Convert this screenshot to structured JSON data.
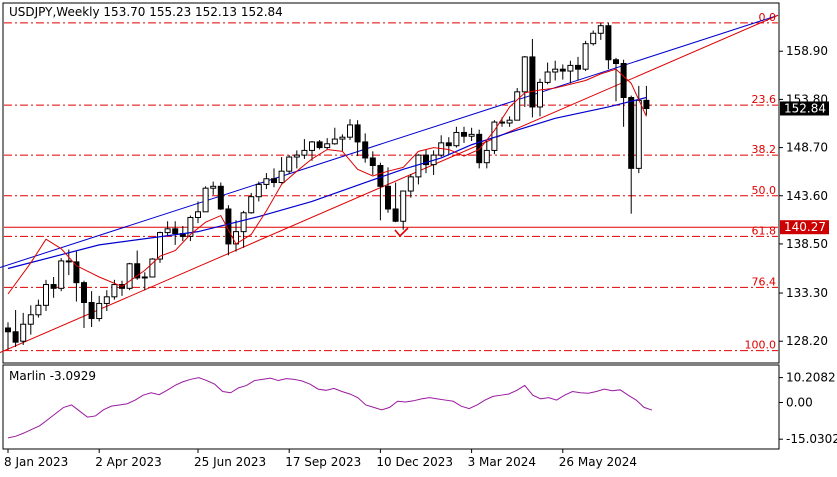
{
  "chart_data": [
    {
      "type": "candlestick",
      "title": "USDJPY,Weekly  153.70 155.23 152.13 152.84",
      "timeframe": "Weekly",
      "symbol": "USDJPY",
      "ohlc_last": {
        "open": 153.7,
        "high": 155.23,
        "low": 152.13,
        "close": 152.84
      },
      "ylim": [
        126.0,
        163.9
      ],
      "y_ticks": [
        "158.90",
        "153.80",
        "148.70",
        "143.60",
        "138.50",
        "133.30",
        "128.20"
      ],
      "x_ticks": [
        "8 Jan 2023",
        "2 Apr 2023",
        "25 Jun 2023",
        "17 Sep 2023",
        "10 Dec 2023",
        "3 Mar 2024",
        "26 May 2024"
      ],
      "current_price_label": "152.84",
      "marked_level_label": "140.27",
      "fibonacci_levels": [
        {
          "label": "0.0",
          "value": 161.9
        },
        {
          "label": "23.6",
          "value": 153.2
        },
        {
          "label": "38.2",
          "value": 147.9
        },
        {
          "label": "50.0",
          "value": 143.6
        },
        {
          "label": "61.8",
          "value": 139.3
        },
        {
          "label": "76.4",
          "value": 133.9
        },
        {
          "label": "100.0",
          "value": 127.2
        }
      ],
      "candles": [
        [
          129.6,
          130.2,
          127.3,
          129.2
        ],
        [
          129.2,
          131.5,
          127.6,
          128.1
        ],
        [
          128.2,
          131.2,
          127.8,
          130.0
        ],
        [
          130.0,
          132.0,
          128.9,
          131.0
        ],
        [
          131.0,
          132.6,
          130.7,
          132.0
        ],
        [
          132.0,
          134.7,
          131.4,
          134.2
        ],
        [
          134.2,
          135.0,
          132.8,
          133.8
        ],
        [
          133.8,
          137.0,
          133.5,
          136.7
        ],
        [
          136.7,
          137.9,
          135.2,
          136.6
        ],
        [
          136.6,
          137.7,
          132.4,
          134.4
        ],
        [
          134.4,
          134.6,
          129.6,
          132.3
        ],
        [
          132.3,
          133.5,
          129.7,
          130.6
        ],
        [
          130.6,
          133.0,
          130.3,
          132.2
        ],
        [
          132.2,
          133.6,
          131.4,
          132.9
        ],
        [
          132.9,
          134.7,
          132.6,
          134.2
        ],
        [
          134.2,
          134.6,
          133.0,
          133.8
        ],
        [
          133.8,
          136.5,
          133.6,
          136.4
        ],
        [
          136.4,
          137.8,
          134.7,
          134.9
        ],
        [
          134.9,
          135.5,
          133.6,
          135.0
        ],
        [
          135.0,
          137.0,
          135.0,
          136.9
        ],
        [
          136.9,
          139.8,
          136.5,
          139.7
        ],
        [
          139.7,
          140.9,
          139.4,
          140.1
        ],
        [
          140.1,
          140.9,
          138.4,
          139.6
        ],
        [
          139.6,
          140.4,
          138.8,
          139.3
        ],
        [
          139.3,
          141.5,
          138.8,
          141.3
        ],
        [
          141.3,
          143.0,
          140.7,
          141.9
        ],
        [
          141.9,
          144.6,
          141.9,
          144.4
        ],
        [
          144.4,
          145.1,
          143.7,
          144.6
        ],
        [
          144.6,
          145.0,
          142.1,
          142.2
        ],
        [
          142.2,
          142.6,
          137.3,
          138.5
        ],
        [
          138.5,
          141.0,
          137.7,
          139.8
        ],
        [
          139.8,
          142.0,
          138.1,
          141.8
        ],
        [
          141.8,
          143.9,
          141.7,
          143.5
        ],
        [
          143.5,
          145.1,
          143.0,
          144.8
        ],
        [
          144.8,
          146.0,
          144.3,
          145.4
        ],
        [
          145.4,
          146.5,
          144.5,
          145.0
        ],
        [
          145.0,
          147.7,
          144.9,
          146.2
        ],
        [
          146.2,
          147.9,
          145.9,
          147.7
        ],
        [
          147.7,
          148.4,
          146.5,
          147.9
        ],
        [
          147.9,
          149.6,
          147.5,
          148.4
        ],
        [
          148.4,
          149.4,
          147.3,
          149.3
        ],
        [
          149.3,
          149.5,
          148.5,
          148.7
        ],
        [
          148.7,
          149.7,
          148.5,
          149.1
        ],
        [
          149.1,
          150.8,
          149.0,
          149.6
        ],
        [
          149.6,
          150.1,
          148.3,
          149.8
        ],
        [
          149.8,
          151.7,
          149.5,
          151.1
        ],
        [
          151.1,
          151.6,
          147.8,
          149.3
        ],
        [
          149.3,
          150.2,
          147.1,
          147.6
        ],
        [
          147.6,
          148.3,
          145.8,
          146.8
        ],
        [
          146.8,
          147.1,
          141.0,
          144.6
        ],
        [
          144.6,
          146.6,
          141.8,
          142.2
        ],
        [
          142.2,
          145.0,
          140.8,
          140.9
        ],
        [
          140.9,
          144.0,
          140.0,
          144.1
        ],
        [
          144.1,
          145.9,
          143.4,
          145.6
        ],
        [
          145.6,
          148.0,
          144.8,
          147.9
        ],
        [
          147.9,
          148.5,
          146.0,
          146.9
        ],
        [
          146.9,
          148.4,
          145.8,
          147.9
        ],
        [
          147.9,
          150.0,
          147.7,
          149.2
        ],
        [
          149.2,
          149.8,
          148.0,
          148.9
        ],
        [
          148.9,
          150.9,
          148.7,
          150.3
        ],
        [
          150.3,
          150.9,
          149.2,
          149.9
        ],
        [
          149.9,
          150.8,
          149.4,
          150.1
        ],
        [
          150.1,
          150.6,
          146.5,
          147.1
        ],
        [
          147.1,
          149.4,
          146.5,
          148.4
        ],
        [
          148.4,
          151.6,
          148.0,
          151.4
        ],
        [
          151.4,
          151.9,
          150.9,
          151.3
        ],
        [
          151.3,
          152.0,
          150.9,
          151.6
        ],
        [
          151.6,
          155.0,
          151.6,
          154.6
        ],
        [
          154.6,
          158.4,
          153.0,
          158.3
        ],
        [
          158.3,
          160.2,
          151.9,
          153.0
        ],
        [
          153.0,
          156.0,
          152.0,
          155.6
        ],
        [
          155.6,
          157.7,
          155.4,
          156.7
        ],
        [
          156.7,
          157.9,
          155.8,
          157.0
        ],
        [
          157.0,
          157.5,
          155.9,
          156.8
        ],
        [
          156.8,
          157.9,
          155.5,
          157.4
        ],
        [
          157.4,
          158.3,
          155.8,
          157.0
        ],
        [
          157.0,
          160.0,
          156.8,
          159.7
        ],
        [
          159.7,
          161.1,
          159.5,
          160.8
        ],
        [
          160.8,
          161.9,
          160.1,
          161.6
        ],
        [
          161.6,
          161.9,
          157.0,
          158.0
        ],
        [
          158.0,
          158.2,
          153.6,
          157.6
        ],
        [
          157.6,
          158.0,
          150.9,
          154.0
        ],
        [
          154.0,
          154.2,
          141.7,
          146.5
        ],
        [
          146.5,
          155.23,
          146.0,
          153.7
        ],
        [
          153.7,
          155.23,
          152.13,
          152.84
        ]
      ],
      "moving_average_blue": [
        [
          0,
          135.9
        ],
        [
          12,
          138.4
        ],
        [
          25,
          139.8
        ],
        [
          33,
          141.4
        ],
        [
          40,
          143.0
        ],
        [
          47,
          145.0
        ],
        [
          52,
          146.4
        ],
        [
          57,
          147.6
        ],
        [
          61,
          149.0
        ],
        [
          66,
          150.3
        ],
        [
          72,
          151.8
        ],
        [
          79,
          153.0
        ],
        [
          84,
          154.0
        ]
      ],
      "envelope_red": [
        [
          0,
          133.2
        ],
        [
          3,
          136.5
        ],
        [
          5,
          139.0
        ],
        [
          7,
          138.0
        ],
        [
          9,
          136.2
        ],
        [
          12,
          135.0
        ],
        [
          15,
          134.0
        ],
        [
          18,
          135.7
        ],
        [
          20,
          137.2
        ],
        [
          22,
          137.8
        ],
        [
          24,
          139.5
        ],
        [
          26,
          140.8
        ],
        [
          28,
          141.5
        ],
        [
          30,
          138.5
        ],
        [
          32,
          139.5
        ],
        [
          34,
          142.0
        ],
        [
          36,
          144.8
        ],
        [
          38,
          146.2
        ],
        [
          40,
          147.5
        ],
        [
          42,
          148.5
        ],
        [
          44,
          148.3
        ],
        [
          46,
          146.4
        ],
        [
          48,
          145.7
        ],
        [
          50,
          146.2
        ],
        [
          52,
          146.6
        ],
        [
          54,
          148.3
        ],
        [
          56,
          148.7
        ],
        [
          58,
          148.5
        ],
        [
          60,
          147.8
        ],
        [
          62,
          148.5
        ],
        [
          64,
          150.5
        ],
        [
          66,
          153.0
        ],
        [
          68,
          154.5
        ],
        [
          70,
          154.8
        ],
        [
          72,
          155.0
        ],
        [
          74,
          155.4
        ],
        [
          76,
          155.8
        ],
        [
          78,
          156.5
        ],
        [
          80,
          157.0
        ],
        [
          82,
          155.5
        ],
        [
          84,
          152.0
        ]
      ],
      "trendlines": [
        {
          "color": "#0000d0",
          "from": [
            0,
            136.0
          ],
          "to": [
            84,
            162.7
          ]
        },
        {
          "color": "#e00000",
          "from": [
            0,
            127.0
          ],
          "to": [
            84,
            162.7
          ]
        }
      ]
    },
    {
      "type": "line",
      "indicator": "Marlin",
      "title": "Marlin -3.0929",
      "y_ticks": [
        "10.2082",
        "0.00",
        "-15.0302"
      ],
      "ylim": [
        -17.0,
        12.5
      ],
      "values": [
        -14.5,
        -13.8,
        -12.5,
        -11.0,
        -9.5,
        -7.0,
        -4.5,
        -2.0,
        -1.0,
        -3.5,
        -6.0,
        -5.5,
        -3.0,
        -1.5,
        -1.0,
        -0.5,
        1.0,
        3.0,
        4.0,
        3.2,
        5.0,
        7.0,
        8.5,
        9.5,
        10.2,
        9.0,
        7.5,
        4.5,
        4.0,
        6.0,
        7.0,
        9.0,
        9.5,
        10.0,
        9.0,
        9.8,
        9.5,
        8.8,
        7.5,
        5.5,
        5.0,
        5.8,
        4.5,
        3.5,
        2.0,
        -1.0,
        -2.0,
        -3.0,
        -2.0,
        0.5,
        0.2,
        0.7,
        1.5,
        2.0,
        1.5,
        1.0,
        0.5,
        -1.5,
        -2.5,
        -1.0,
        1.0,
        2.5,
        3.0,
        3.5,
        5.0,
        7.0,
        3.0,
        1.5,
        2.0,
        1.0,
        3.0,
        4.5,
        4.0,
        3.8,
        4.5,
        5.5,
        4.8,
        5.2,
        3.0,
        1.0,
        -2.0,
        -3.09
      ]
    }
  ],
  "colors": {
    "bull_body": "#ffffff",
    "bear_body": "#000000",
    "blue_line": "#0000d0",
    "red_line": "#e00000",
    "fib_line": "#e00000",
    "oscillator": "#9a1aa0",
    "marked_level_bg": "#cc0000",
    "price_label_bg": "#000000"
  },
  "icons": {
    "check_mark": "check-mark-icon"
  }
}
